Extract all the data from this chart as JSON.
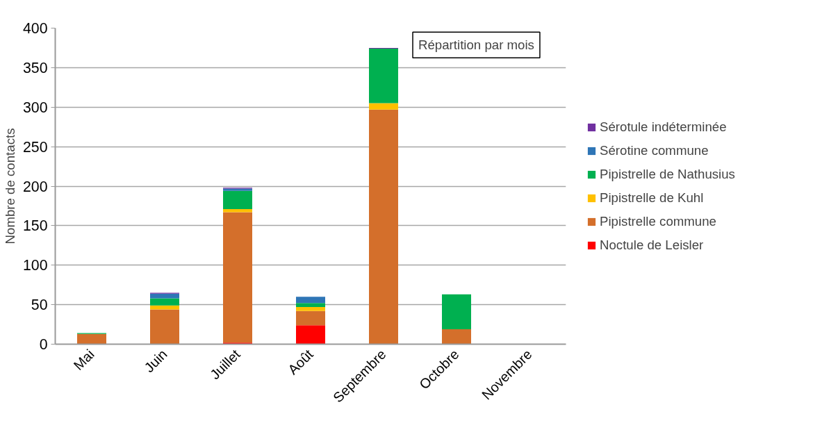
{
  "chart_data": {
    "type": "bar",
    "title": "Répartition par mois",
    "ylabel": "Nombre de contacts",
    "stacked": true,
    "legend": "right",
    "grid": "y",
    "categories": [
      "Mai",
      "Juin",
      "Juillet",
      "Août",
      "Septembre",
      "Octobre",
      "Novembre"
    ],
    "ylim": [
      0,
      400
    ],
    "yticks": [
      0,
      50,
      100,
      150,
      200,
      250,
      300,
      350,
      400
    ],
    "series": [
      {
        "name": "Noctule de Leisler",
        "color": "#ff0000",
        "values": [
          0,
          0,
          2,
          24,
          0,
          0,
          0
        ]
      },
      {
        "name": "Pipistrelle commune",
        "color": "#d46f2b",
        "values": [
          13,
          44,
          165,
          18,
          297,
          19,
          0
        ]
      },
      {
        "name": "Pipistrelle de Kuhl",
        "color": "#ffc000",
        "values": [
          0,
          5,
          4,
          5,
          8,
          0,
          0
        ]
      },
      {
        "name": "Pipistrelle de Nathusius",
        "color": "#00b050",
        "values": [
          1,
          9,
          23,
          5,
          69,
          44,
          0
        ]
      },
      {
        "name": "Sérotine commune",
        "color": "#2e75b6",
        "values": [
          0,
          6,
          3,
          8,
          0,
          0,
          0
        ]
      },
      {
        "name": "Sérotule indéterminée",
        "color": "#7030a0",
        "values": [
          0,
          1,
          1,
          0,
          1,
          0,
          0
        ]
      }
    ]
  }
}
